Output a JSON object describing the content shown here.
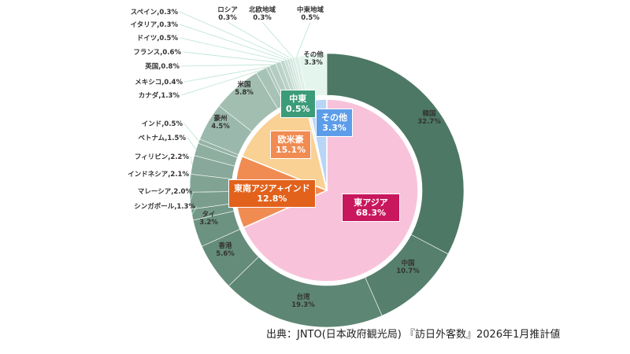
{
  "chart_data": {
    "type": "pie",
    "title": "",
    "inner": [
      {
        "name": "東アジア",
        "value": 68.3,
        "label": "68.3%",
        "color": "#f8c3da",
        "box": "#c8175d"
      },
      {
        "name": "東南アジア+インド",
        "value": 12.8,
        "label": "12.8%",
        "color": "#f08b52",
        "box": "#e2611b"
      },
      {
        "name": "欧米豪",
        "value": 15.1,
        "label": "15.1%",
        "color": "#f9d195",
        "box": "#f08b52"
      },
      {
        "name": "中東",
        "value": 0.5,
        "label": "0.5%",
        "color": "#dff2ea",
        "box": "#3c9c7a"
      },
      {
        "name": "その他",
        "value": 3.3,
        "label": "3.3%",
        "color": "#b9d5f6",
        "box": "#5c9de9"
      }
    ],
    "outer": [
      {
        "name": "韓国",
        "value": 32.7,
        "label": "32.7%"
      },
      {
        "name": "中国",
        "value": 10.7,
        "label": "10.7%"
      },
      {
        "name": "台湾",
        "value": 19.3,
        "label": "19.3%"
      },
      {
        "name": "香港",
        "value": 5.6,
        "label": "5.6%"
      },
      {
        "name": "タイ",
        "value": 3.2,
        "label": "3.2%"
      },
      {
        "name": "シンガポール",
        "value": 1.3,
        "label": "1.3%"
      },
      {
        "name": "マレーシア",
        "value": 2.0,
        "label": "2.0%"
      },
      {
        "name": "インドネシア",
        "value": 2.1,
        "label": "2.1%"
      },
      {
        "name": "フィリピン",
        "value": 2.2,
        "label": "2.2%"
      },
      {
        "name": "ベトナム",
        "value": 1.5,
        "label": "1.5%"
      },
      {
        "name": "インド",
        "value": 0.5,
        "label": "0.5%"
      },
      {
        "name": "豪州",
        "value": 4.5,
        "label": "4.5%"
      },
      {
        "name": "米国",
        "value": 5.8,
        "label": "5.8%"
      },
      {
        "name": "カナダ",
        "value": 1.3,
        "label": "1.3%"
      },
      {
        "name": "メキシコ",
        "value": 0.4,
        "label": "0.4%"
      },
      {
        "name": "英国",
        "value": 0.8,
        "label": "0.8%"
      },
      {
        "name": "フランス",
        "value": 0.6,
        "label": "0.6%"
      },
      {
        "name": "ドイツ",
        "value": 0.5,
        "label": "0.5%"
      },
      {
        "name": "イタリア",
        "value": 0.3,
        "label": "0.3%"
      },
      {
        "name": "スペイン",
        "value": 0.3,
        "label": "0.3%"
      },
      {
        "name": "ロシア",
        "value": 0.3,
        "label": "0.3%"
      },
      {
        "name": "北欧地域",
        "value": 0.3,
        "label": "0.3%"
      },
      {
        "name": "中東地域",
        "value": 0.5,
        "label": "0.5%"
      },
      {
        "name": "その他",
        "value": 3.3,
        "label": "3.3%"
      }
    ]
  },
  "source": "出典：JNTO(日本政府観光局) 『訪日外客数』2026年1月推計値"
}
